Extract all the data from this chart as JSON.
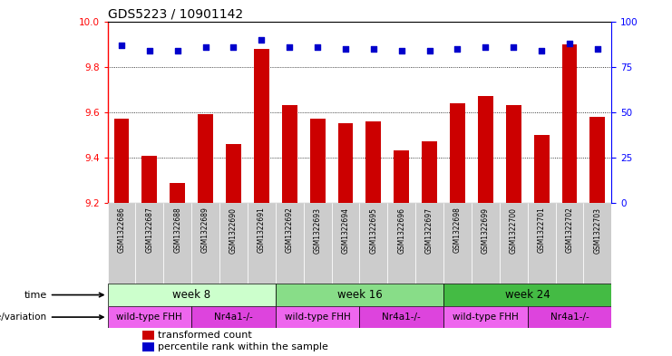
{
  "title": "GDS5223 / 10901142",
  "samples": [
    "GSM1322686",
    "GSM1322687",
    "GSM1322688",
    "GSM1322689",
    "GSM1322690",
    "GSM1322691",
    "GSM1322692",
    "GSM1322693",
    "GSM1322694",
    "GSM1322695",
    "GSM1322696",
    "GSM1322697",
    "GSM1322698",
    "GSM1322699",
    "GSM1322700",
    "GSM1322701",
    "GSM1322702",
    "GSM1322703"
  ],
  "bar_values": [
    9.57,
    9.41,
    9.29,
    9.59,
    9.46,
    9.88,
    9.63,
    9.57,
    9.55,
    9.56,
    9.43,
    9.47,
    9.64,
    9.67,
    9.63,
    9.5,
    9.9,
    9.58
  ],
  "percentile_values": [
    87,
    84,
    84,
    86,
    86,
    90,
    86,
    86,
    85,
    85,
    84,
    84,
    85,
    86,
    86,
    84,
    88,
    85
  ],
  "ylim_left": [
    9.2,
    10.0
  ],
  "ylim_right": [
    0,
    100
  ],
  "yticks_left": [
    9.2,
    9.4,
    9.6,
    9.8,
    10.0
  ],
  "yticks_right": [
    0,
    25,
    50,
    75,
    100
  ],
  "bar_color": "#cc0000",
  "dot_color": "#0000cc",
  "time_groups": [
    {
      "label": "week 8",
      "start": 0,
      "end": 5,
      "color": "#ccffcc"
    },
    {
      "label": "week 16",
      "start": 6,
      "end": 11,
      "color": "#88dd88"
    },
    {
      "label": "week 24",
      "start": 12,
      "end": 17,
      "color": "#44bb44"
    }
  ],
  "genotype_groups": [
    {
      "label": "wild-type FHH",
      "start": 0,
      "end": 2,
      "color": "#ee66ee"
    },
    {
      "label": "Nr4a1-/-",
      "start": 3,
      "end": 5,
      "color": "#dd44dd"
    },
    {
      "label": "wild-type FHH",
      "start": 6,
      "end": 8,
      "color": "#ee66ee"
    },
    {
      "label": "Nr4a1-/-",
      "start": 9,
      "end": 11,
      "color": "#dd44dd"
    },
    {
      "label": "wild-type FHH",
      "start": 12,
      "end": 14,
      "color": "#ee66ee"
    },
    {
      "label": "Nr4a1-/-",
      "start": 15,
      "end": 17,
      "color": "#dd44dd"
    }
  ],
  "tick_bg_color": "#cccccc",
  "background_color": "#ffffff",
  "legend_bar_label": "transformed count",
  "legend_dot_label": "percentile rank within the sample"
}
